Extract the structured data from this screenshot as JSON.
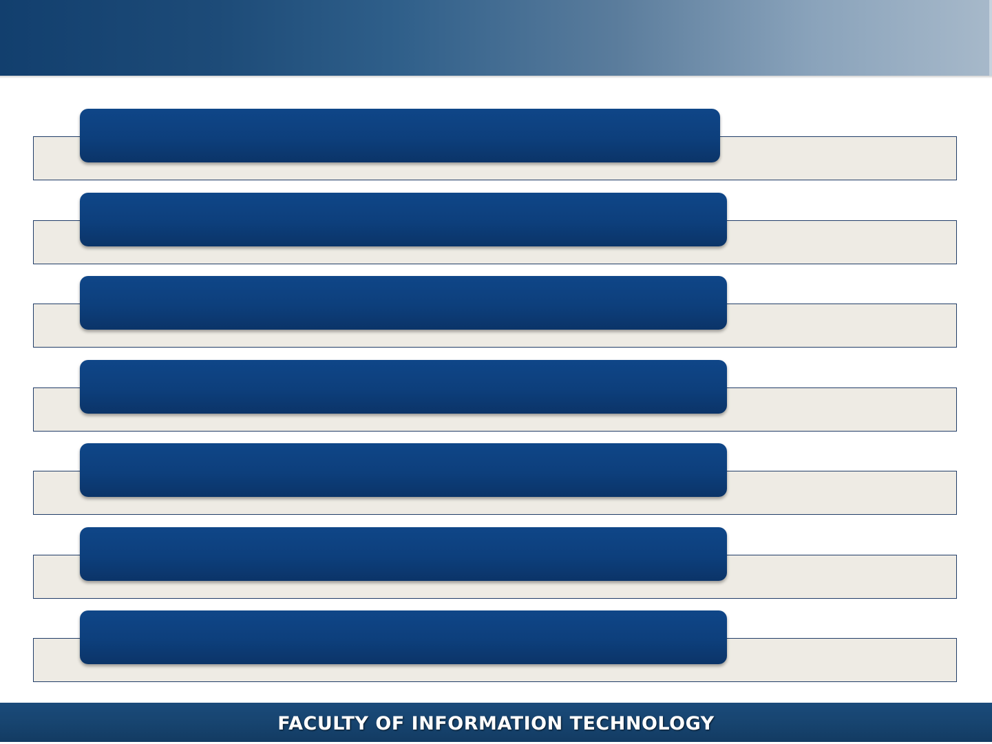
{
  "footer": {
    "title": "FACULTY OF INFORMATION TECHNOLOGY"
  },
  "rows": [
    {
      "label": "",
      "text": ""
    },
    {
      "label": "",
      "text": ""
    },
    {
      "label": "",
      "text": ""
    },
    {
      "label": "",
      "text": ""
    },
    {
      "label": "",
      "text": ""
    },
    {
      "label": "",
      "text": ""
    },
    {
      "label": "",
      "text": ""
    }
  ],
  "colors": {
    "banner_start": "#123f6e",
    "banner_end": "#a7b9ca",
    "label_fill": "#0d3f7c",
    "panel_fill": "#eeebe4",
    "panel_border": "#1f3b66",
    "footer_fill": "#17446f"
  }
}
